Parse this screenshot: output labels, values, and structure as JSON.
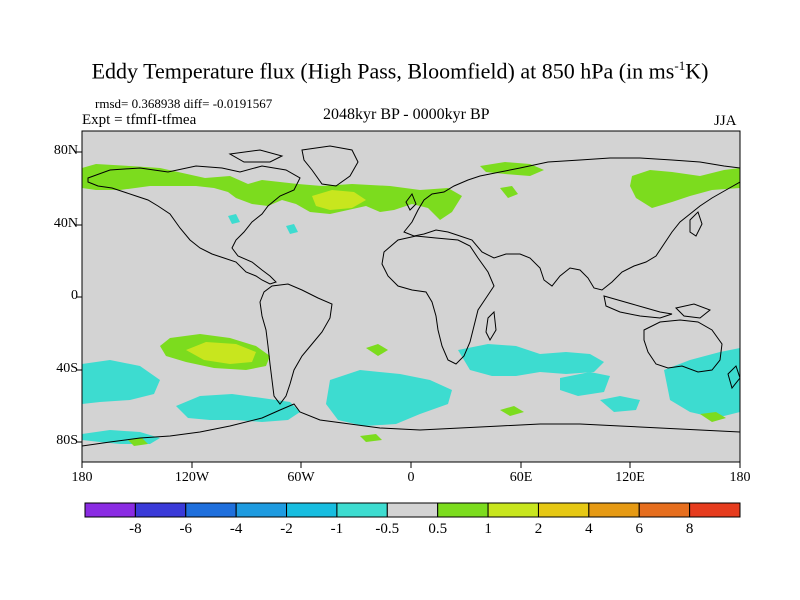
{
  "title": {
    "main": "Eddy Temperature flux (High Pass, Bloomfield) at 850 hPa (in ms",
    "superscript": "-1",
    "unit_end": "K)"
  },
  "stats": "rmsd= 0.368938 diff= -0.0191567",
  "experiment": "Expt = tfmfI-tfmea",
  "period": "2048kyr BP - 0000kyr BP",
  "season": "JJA",
  "map": {
    "latitude_labels": [
      "80N",
      "40N",
      "0",
      "40S",
      "80S"
    ],
    "longitude_labels": [
      "180",
      "120W",
      "60W",
      "0",
      "60E",
      "120E",
      "180"
    ],
    "land_color": "#d3d3d3",
    "ocean_color": "#d3d3d3"
  },
  "colorbar": {
    "labels": [
      "-8",
      "-6",
      "-4",
      "-2",
      "-1",
      "-0.5",
      "0.5",
      "1",
      "2",
      "4",
      "6",
      "8"
    ],
    "colors": [
      "#8a2be2",
      "#3a3ad8",
      "#1f6fdc",
      "#1e9be0",
      "#17bde0",
      "#3ddcd0",
      "#d3d3d3",
      "#7cdc1e",
      "#c8e61e",
      "#e6c814",
      "#e69a14",
      "#e66e1e",
      "#e63c1e"
    ]
  }
}
